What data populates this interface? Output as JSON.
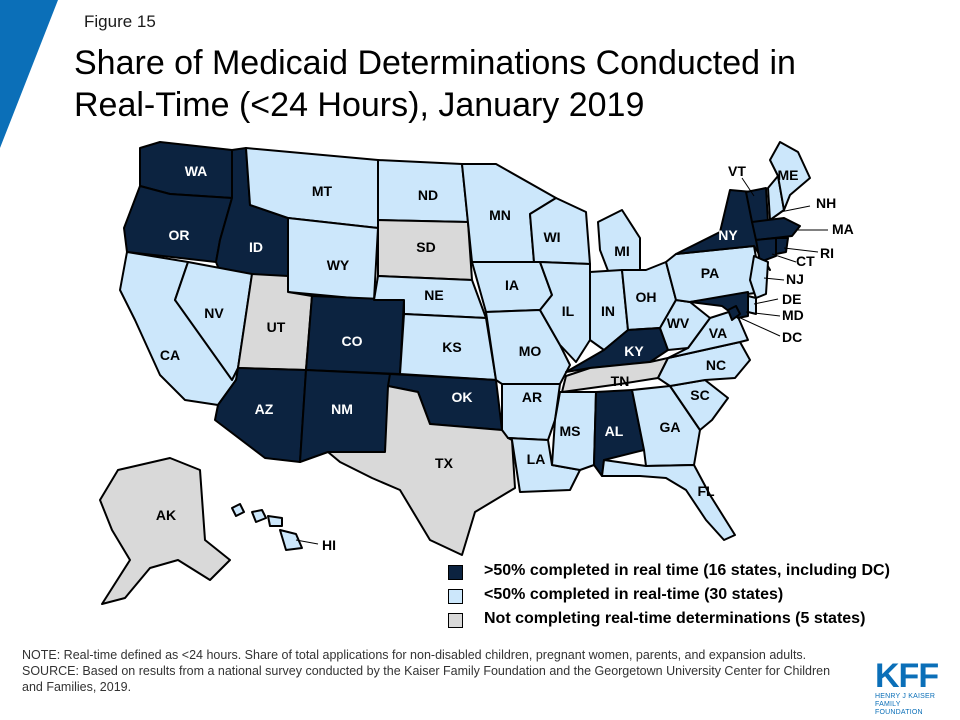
{
  "figure_label": "Figure 15",
  "title_line1": "Share of Medicaid Determinations Conducted in",
  "title_line2": "Real-Time (<24 Hours), January 2019",
  "colors": {
    "dark": "#0c2340",
    "light": "#cce7fb",
    "gray": "#d9d9d9",
    "accent": "#0b6fb8"
  },
  "legend": [
    {
      "category": "dark",
      "label": ">50% completed in real time (16 states, including DC)"
    },
    {
      "category": "light",
      "label": "<50% completed in real-time (30 states)"
    },
    {
      "category": "gray",
      "label": "Not completing real-time determinations (5 states)"
    }
  ],
  "states": {
    "WA": "dark",
    "OR": "dark",
    "ID": "dark",
    "CO": "dark",
    "AZ": "dark",
    "NM": "dark",
    "OK": "dark",
    "KY": "dark",
    "AL": "dark",
    "NY": "dark",
    "VT": "dark",
    "MA": "dark",
    "RI": "dark",
    "CT": "dark",
    "MD": "dark",
    "DC": "dark",
    "UT": "gray",
    "SD": "gray",
    "TX": "gray",
    "TN": "gray",
    "AK": "gray",
    "MT": "light",
    "ND": "light",
    "MN": "light",
    "WI": "light",
    "MI": "light",
    "CA": "light",
    "NV": "light",
    "WY": "light",
    "NE": "light",
    "IA": "light",
    "IL": "light",
    "IN": "light",
    "OH": "light",
    "PA": "light",
    "KS": "light",
    "MO": "light",
    "AR": "light",
    "LA": "light",
    "MS": "light",
    "GA": "light",
    "FL": "light",
    "SC": "light",
    "NC": "light",
    "VA": "light",
    "WV": "light",
    "ME": "light",
    "NH": "light",
    "NJ": "light",
    "DE": "light",
    "HI": "light"
  },
  "notes": {
    "note": "NOTE: Real-time defined as <24 hours. Share of total applications for non-disabled children, pregnant women, parents, and expansion adults.",
    "source": "SOURCE: Based on results from a national survey conducted by the Kaiser Family Foundation and the Georgetown University Center for Children and Families, 2019."
  },
  "logo": {
    "text": "KFF",
    "sub1": "HENRY J KAISER",
    "sub2": "FAMILY FOUNDATION"
  }
}
